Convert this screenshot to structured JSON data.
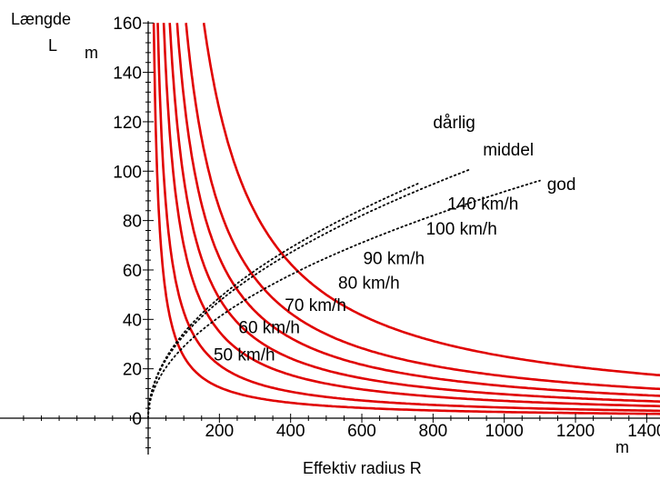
{
  "chart_data": {
    "type": "line",
    "title": "",
    "ylabel": "Længde",
    "ylabel_symbol": "L",
    "ylabel_unit": "m",
    "xlabel": "Effektiv radius R",
    "xlabel_unit": "m",
    "xlim": [
      0,
      1500
    ],
    "ylim": [
      0,
      160
    ],
    "grid": false,
    "x_ticks": [
      200,
      400,
      600,
      800,
      1000,
      1200,
      1400
    ],
    "y_ticks": [
      0,
      20,
      40,
      60,
      80,
      100,
      120,
      140,
      160
    ],
    "speed_curves": [
      {
        "label": "50 km/h",
        "model": "L = k / R",
        "k": 2500,
        "label_at": [
          270,
          26
        ]
      },
      {
        "label": "60 km/h",
        "model": "L = k / R",
        "k": 4300,
        "label_at": [
          340,
          37
        ]
      },
      {
        "label": "70 km/h",
        "model": "L = k / R",
        "k": 7000,
        "label_at": [
          470,
          46
        ]
      },
      {
        "label": "80 km/h",
        "model": "L = k / R",
        "k": 9700,
        "label_at": [
          620,
          55
        ]
      },
      {
        "label": "90 km/h",
        "model": "L = k / R",
        "k": 13000,
        "label_at": [
          690,
          65
        ]
      },
      {
        "label": "100 km/h",
        "model": "L = k / R",
        "k": 17000,
        "label_at": [
          880,
          77
        ]
      },
      {
        "label": "140 km/h",
        "model": "L = k / R",
        "k": 25000,
        "label_at": [
          940,
          87
        ]
      }
    ],
    "quality_curves": [
      {
        "label": "dårlig",
        "model": "L = c * sqrt(R)",
        "c": 3.45,
        "x_end": 760,
        "label_at": [
          800,
          120
        ]
      },
      {
        "label": "middel",
        "model": "L = c * sqrt(R)",
        "c": 3.35,
        "x_end": 900,
        "label_at": [
          940,
          109
        ]
      },
      {
        "label": "god",
        "model": "L = c * sqrt(R)",
        "c": 2.9,
        "x_end": 1100,
        "label_at": [
          1120,
          95
        ]
      }
    ]
  }
}
